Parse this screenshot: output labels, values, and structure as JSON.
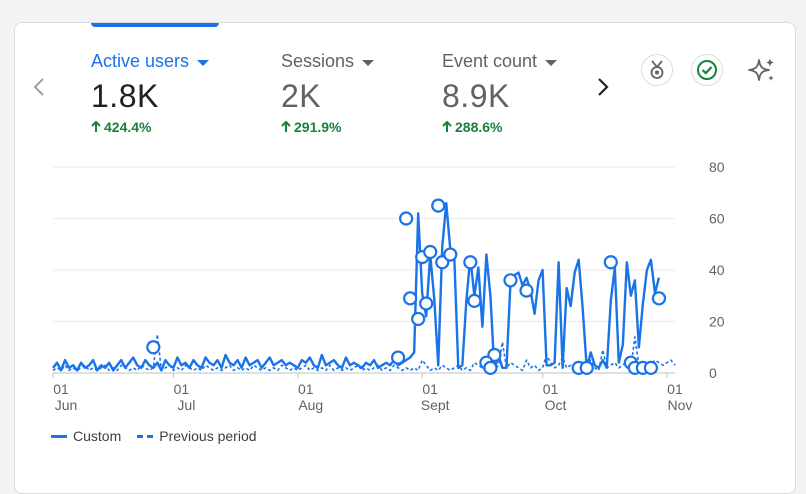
{
  "metrics": [
    {
      "label": "Active users",
      "value": "1.8K",
      "change": "424.4%"
    },
    {
      "label": "Sessions",
      "value": "2K",
      "change": "291.9%"
    },
    {
      "label": "Event count",
      "value": "8.9K",
      "change": "288.6%"
    }
  ],
  "icons": {
    "prev": "chevron-left-icon",
    "next": "chevron-right-icon",
    "badge": "medal-icon",
    "check": "check-circle-icon",
    "sparkle": "sparkle-icon"
  },
  "colors": {
    "accent": "#1a73e8",
    "positive": "#188038"
  },
  "legend": {
    "current": "Custom",
    "previous": "Previous period"
  },
  "chart_data": {
    "type": "line",
    "ylim": [
      0,
      80
    ],
    "y_ticks": [
      "0",
      "20",
      "40",
      "60",
      "80"
    ],
    "x_ticks": [
      {
        "day": 0,
        "line1": "01",
        "line2": "Jun"
      },
      {
        "day": 30,
        "line1": "01",
        "line2": "Jul"
      },
      {
        "day": 61,
        "line1": "01",
        "line2": "Aug"
      },
      {
        "day": 92,
        "line1": "01",
        "line2": "Sept"
      },
      {
        "day": 122,
        "line1": "01",
        "line2": "Oct"
      },
      {
        "day": 153,
        "line1": "01",
        "line2": "Nov"
      }
    ],
    "x_range_days": [
      0,
      155
    ],
    "grid": true,
    "legend_position": "bottom-left",
    "series": [
      {
        "name": "Custom",
        "style": "solid",
        "values": [
          2,
          4,
          1,
          5,
          2,
          3,
          1,
          4,
          2,
          3,
          5,
          1,
          3,
          2,
          4,
          1,
          3,
          5,
          2,
          4,
          6,
          3,
          2,
          5,
          3,
          2,
          4,
          1,
          5,
          3,
          2,
          6,
          3,
          4,
          2,
          5,
          3,
          2,
          6,
          4,
          3,
          5,
          2,
          7,
          4,
          3,
          5,
          2,
          6,
          3,
          4,
          5,
          2,
          4,
          6,
          3,
          4,
          5,
          3,
          4,
          3,
          2,
          5,
          4,
          6,
          3,
          2,
          7,
          3,
          4,
          5,
          3,
          2,
          6,
          3,
          4,
          3,
          2,
          4,
          3,
          5,
          2,
          3,
          4,
          3,
          5,
          3,
          4,
          5,
          6,
          8,
          62,
          31,
          22,
          46,
          29,
          3,
          49,
          66,
          48,
          45,
          2,
          3,
          28,
          45,
          30,
          41,
          18,
          46,
          30,
          1,
          7,
          2,
          2,
          35,
          38,
          39,
          34,
          37,
          32,
          23,
          36,
          40,
          3,
          3,
          4,
          43,
          2,
          33,
          26,
          39,
          44,
          25,
          2,
          8,
          3,
          2,
          5,
          2,
          28,
          41,
          4,
          11,
          43,
          30,
          36,
          10,
          27,
          40,
          44,
          31,
          37
        ]
      },
      {
        "name": "Previous period",
        "style": "dashed",
        "values": [
          1,
          2,
          1,
          3,
          1,
          2,
          1,
          2,
          3,
          1,
          2,
          1,
          2,
          3,
          1,
          2,
          1,
          3,
          2,
          1,
          2,
          1,
          3,
          2,
          1,
          2,
          15,
          1,
          2,
          3,
          1,
          2,
          1,
          3,
          2,
          1,
          2,
          1,
          3,
          2,
          1,
          2,
          1,
          2,
          3,
          1,
          2,
          1,
          2,
          1,
          3,
          2,
          1,
          2,
          1,
          2,
          1,
          3,
          2,
          1,
          2,
          1,
          2,
          3,
          1,
          2,
          1,
          2,
          1,
          3,
          1,
          2,
          1,
          2,
          1,
          2,
          3,
          1,
          2,
          1,
          2,
          3,
          1,
          2,
          1,
          3,
          2,
          1,
          2,
          1,
          2,
          1,
          5,
          3,
          1,
          2,
          1,
          3,
          2,
          1,
          2,
          3,
          1,
          2,
          1,
          4,
          3,
          2,
          6,
          4,
          1,
          3,
          12,
          2,
          4,
          3,
          2,
          1,
          5,
          2,
          3,
          1,
          2,
          7,
          4,
          2,
          3,
          6,
          2,
          3,
          1,
          4,
          2,
          3,
          5,
          2,
          1,
          9,
          2,
          3,
          4,
          2,
          3,
          5,
          2,
          14,
          3,
          4,
          2,
          3,
          5,
          4,
          3,
          4,
          5,
          3
        ]
      }
    ],
    "markers": [
      {
        "day": 25,
        "value": 10
      },
      {
        "day": 110,
        "value": 7
      },
      {
        "day": 114,
        "value": 36
      },
      {
        "day": 118,
        "value": 32
      },
      {
        "day": 131,
        "value": 2
      },
      {
        "day": 133,
        "value": 2
      },
      {
        "day": 139,
        "value": 43
      },
      {
        "day": 144,
        "value": 4
      },
      {
        "day": 145,
        "value": 2
      },
      {
        "day": 147,
        "value": 2
      },
      {
        "day": 149,
        "value": 2
      },
      {
        "day": 151,
        "value": 29
      },
      {
        "day": 86,
        "value": 6
      },
      {
        "day": 88,
        "value": 60
      },
      {
        "day": 89,
        "value": 29
      },
      {
        "day": 91,
        "value": 21
      },
      {
        "day": 92,
        "value": 45
      },
      {
        "day": 93,
        "value": 27
      },
      {
        "day": 94,
        "value": 47
      },
      {
        "day": 96,
        "value": 65
      },
      {
        "day": 97,
        "value": 43
      },
      {
        "day": 104,
        "value": 43
      },
      {
        "day": 105,
        "value": 28
      },
      {
        "day": 108,
        "value": 4
      },
      {
        "day": 109,
        "value": 2
      },
      {
        "day": 99,
        "value": 46
      }
    ]
  }
}
